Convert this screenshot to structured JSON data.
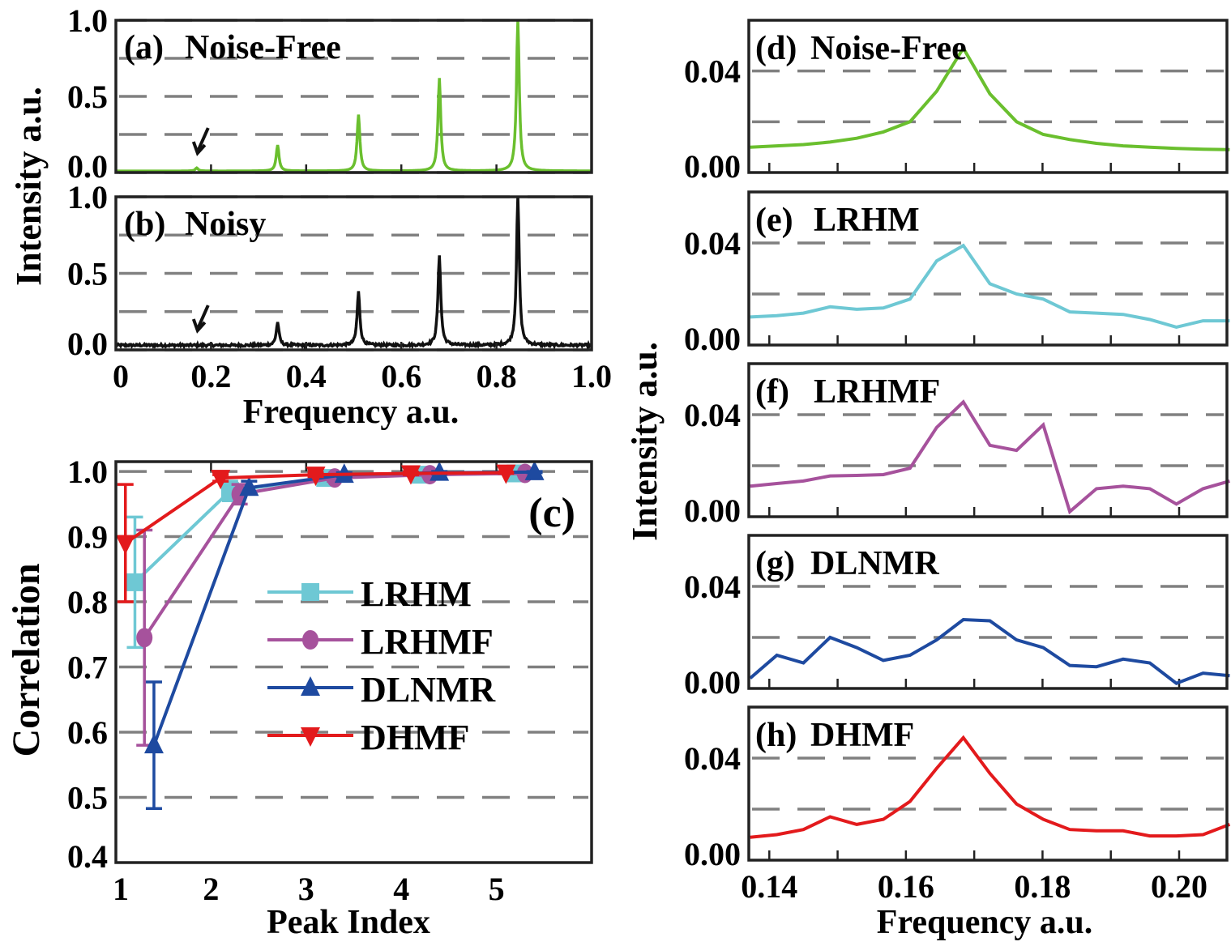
{
  "chart_data": [
    {
      "id": "a",
      "type": "line",
      "label": "(a)",
      "title": "Noise-Free",
      "xlim": [
        0,
        1
      ],
      "ylim": [
        0,
        1
      ],
      "yticks": [
        "0.0",
        "0.5",
        "1.0"
      ],
      "grid_y": [
        0.25,
        0.5,
        0.75
      ],
      "color": "#6abf2e",
      "baseline": 0.01,
      "noise": 0,
      "peaks": [
        {
          "x": 0.17,
          "h": 0.03
        },
        {
          "x": 0.34,
          "h": 0.18
        },
        {
          "x": 0.51,
          "h": 0.38
        },
        {
          "x": 0.68,
          "h": 0.62
        },
        {
          "x": 0.845,
          "h": 1.0
        }
      ],
      "arrow_at": 0.17
    },
    {
      "id": "b",
      "type": "line",
      "label": "(b)",
      "title": "Noisy",
      "xlim": [
        0,
        1
      ],
      "ylim": [
        0,
        1
      ],
      "yticks": [
        "0.0",
        "0.5",
        "1.0"
      ],
      "grid_y": [
        0.25,
        0.5,
        0.75
      ],
      "color": "#111111",
      "baseline": 0.03,
      "noise": 0.008,
      "peaks": [
        {
          "x": 0.17,
          "h": 0.03
        },
        {
          "x": 0.34,
          "h": 0.18
        },
        {
          "x": 0.51,
          "h": 0.38
        },
        {
          "x": 0.68,
          "h": 0.62
        },
        {
          "x": 0.845,
          "h": 1.0
        }
      ],
      "arrow_at": 0.17,
      "xticks": [
        "0",
        "0.2",
        "0.4",
        "0.6",
        "0.8",
        "1.0"
      ],
      "xlabel": "Frequency a.u."
    },
    {
      "id": "c",
      "type": "line",
      "label": "(c)",
      "xlim": [
        1,
        6
      ],
      "ylim": [
        0.4,
        1.015
      ],
      "xticks": [
        "1",
        "2",
        "3",
        "4",
        "5"
      ],
      "yticks": [
        "0.4",
        "0.5",
        "0.6",
        "0.7",
        "0.8",
        "0.9",
        "1.0"
      ],
      "xlabel": "Peak Index",
      "ylabel": "Correlation",
      "legend": "center",
      "series": [
        {
          "name": "LRHM",
          "color": "#6ec8d4",
          "marker": "square",
          "x": [
            1.2,
            2.2,
            3.2,
            4.2,
            5.2
          ],
          "values": [
            0.83,
            0.97,
            0.99,
            0.995,
            0.997
          ],
          "error": [
            0.1,
            0.015,
            0.005,
            0.003,
            0.002
          ]
        },
        {
          "name": "LRHMF",
          "color": "#a6529c",
          "marker": "circle",
          "x": [
            1.3,
            2.3,
            3.3,
            4.3,
            5.3
          ],
          "values": [
            0.745,
            0.965,
            0.99,
            0.995,
            0.997
          ],
          "error": [
            0.165,
            0.015,
            0.005,
            0.003,
            0.002
          ]
        },
        {
          "name": "DLNMR",
          "color": "#1e4aa0",
          "marker": "triangle-up",
          "x": [
            1.4,
            2.4,
            3.4,
            4.4,
            5.4
          ],
          "values": [
            0.58,
            0.975,
            0.995,
            0.998,
            0.999
          ],
          "error": [
            0.097,
            0.01,
            0.003,
            0.002,
            0.001
          ]
        },
        {
          "name": "DHMF",
          "color": "#e31a1c",
          "marker": "triangle-down",
          "x": [
            1.1,
            2.1,
            3.1,
            4.1,
            5.1
          ],
          "values": [
            0.89,
            0.99,
            0.995,
            0.997,
            0.998
          ],
          "error": [
            0.09,
            0.005,
            0.003,
            0.002,
            0.001
          ]
        }
      ]
    },
    {
      "id": "d",
      "type": "line",
      "label": "(d)",
      "title": "Noise-Free",
      "color": "#6abf2e",
      "xlim": [
        0.137,
        0.207
      ],
      "ylim": [
        0,
        0.06
      ],
      "yticks": [
        "0.00",
        "0.04"
      ],
      "x_start": 0.1372,
      "x_step": 0.0039,
      "values": [
        0.01,
        0.0105,
        0.011,
        0.012,
        0.0135,
        0.016,
        0.02,
        0.032,
        0.049,
        0.031,
        0.02,
        0.015,
        0.013,
        0.0115,
        0.0105,
        0.01,
        0.0095,
        0.0092,
        0.009
      ]
    },
    {
      "id": "e",
      "type": "line",
      "label": "(e)",
      "title": "LRHM",
      "color": "#6ec8d4",
      "xlim": [
        0.137,
        0.207
      ],
      "ylim": [
        0,
        0.06
      ],
      "yticks": [
        "0.00",
        "0.04"
      ],
      "x_start": 0.1372,
      "x_step": 0.0039,
      "values": [
        0.011,
        0.0115,
        0.0125,
        0.015,
        0.014,
        0.0145,
        0.018,
        0.033,
        0.039,
        0.024,
        0.02,
        0.018,
        0.013,
        0.0125,
        0.012,
        0.01,
        0.007,
        0.0095,
        0.0095
      ]
    },
    {
      "id": "f",
      "type": "line",
      "label": "(f)",
      "title": "LRHMF",
      "color": "#a6529c",
      "xlim": [
        0.137,
        0.207
      ],
      "ylim": [
        0,
        0.06
      ],
      "yticks": [
        "0.00",
        "0.04"
      ],
      "x_start": 0.1372,
      "x_step": 0.0039,
      "values": [
        0.012,
        0.013,
        0.014,
        0.016,
        0.0162,
        0.0165,
        0.019,
        0.035,
        0.045,
        0.028,
        0.026,
        0.036,
        0.002,
        0.011,
        0.012,
        0.011,
        0.005,
        0.011,
        0.014
      ]
    },
    {
      "id": "g",
      "type": "line",
      "label": "(g)",
      "title": "DLNMR",
      "color": "#1e4aa0",
      "xlim": [
        0.137,
        0.207
      ],
      "ylim": [
        0,
        0.06
      ],
      "yticks": [
        "0.00",
        "0.04"
      ],
      "x_start": 0.1372,
      "x_step": 0.0039,
      "values": [
        0.004,
        0.013,
        0.01,
        0.02,
        0.016,
        0.011,
        0.013,
        0.019,
        0.027,
        0.0265,
        0.019,
        0.016,
        0.009,
        0.0085,
        0.0115,
        0.01,
        0.002,
        0.006,
        0.005
      ]
    },
    {
      "id": "h",
      "type": "line",
      "label": "(h)",
      "title": "DHMF",
      "color": "#e31a1c",
      "xlim": [
        0.137,
        0.207
      ],
      "ylim": [
        0,
        0.06
      ],
      "yticks": [
        "0.00",
        "0.04"
      ],
      "x_start": 0.1372,
      "x_step": 0.0039,
      "values": [
        0.009,
        0.01,
        0.012,
        0.017,
        0.014,
        0.016,
        0.023,
        0.036,
        0.048,
        0.034,
        0.022,
        0.016,
        0.012,
        0.0115,
        0.0115,
        0.0095,
        0.0095,
        0.01,
        0.014
      ],
      "xticks": [
        "0.14",
        "0.16",
        "0.18",
        "0.20"
      ],
      "xtick_values": [
        0.14,
        0.16,
        0.18,
        0.2
      ],
      "xlabel": "Frequency a.u."
    }
  ],
  "axes": {
    "left_ylabel": "Intensity a.u.",
    "right_ylabel": "Intensity a.u."
  },
  "colors": {
    "grid": "#808080",
    "frame": "#222222"
  }
}
